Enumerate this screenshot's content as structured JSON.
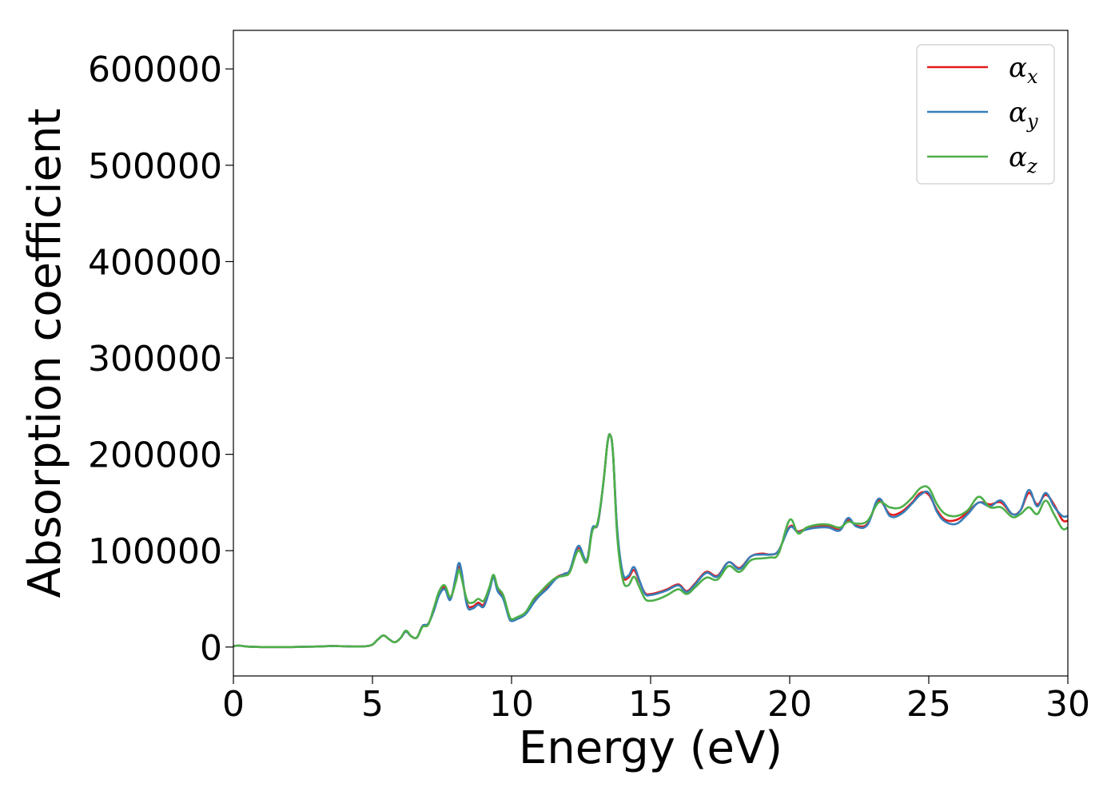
{
  "chart_data": {
    "type": "line",
    "xlabel": "Energy (eV)",
    "ylabel": "Absorption coefficient",
    "xlim": [
      0,
      30
    ],
    "ylim": [
      -30000,
      640000
    ],
    "xticks": [
      0,
      5,
      10,
      15,
      20,
      25,
      30
    ],
    "yticks": [
      0,
      100000,
      200000,
      300000,
      400000,
      500000,
      600000
    ],
    "grid": false,
    "legend_position": "top-right",
    "series": [
      {
        "name": "α",
        "subscript": "x",
        "color": "#e41a1c",
        "x": [
          0,
          0.2,
          0.5,
          1,
          2,
          3,
          3.5,
          4,
          4.5,
          4.8,
          5,
          5.2,
          5.4,
          5.6,
          5.8,
          6,
          6.2,
          6.4,
          6.6,
          6.8,
          7,
          7.2,
          7.4,
          7.6,
          7.8,
          8,
          8.1,
          8.2,
          8.4,
          8.6,
          8.8,
          9,
          9.2,
          9.35,
          9.5,
          9.7,
          9.9,
          10,
          10.2,
          10.5,
          10.8,
          11,
          11.3,
          11.6,
          11.9,
          12.1,
          12.4,
          12.7,
          12.9,
          13.1,
          13.3,
          13.45,
          13.55,
          13.65,
          13.8,
          14,
          14.2,
          14.4,
          14.6,
          14.8,
          15,
          15.3,
          15.6,
          16,
          16.3,
          16.6,
          17,
          17.4,
          17.8,
          18.2,
          18.6,
          19,
          19.3,
          19.6,
          20,
          20.3,
          20.6,
          21,
          21.4,
          21.8,
          22.1,
          22.4,
          22.8,
          23.2,
          23.6,
          24,
          24.4,
          24.7,
          25,
          25.3,
          25.6,
          26,
          26.4,
          26.8,
          27.2,
          27.6,
          28,
          28.3,
          28.6,
          28.9,
          29.2,
          29.5,
          29.8,
          30
        ],
        "y": [
          1000,
          1500,
          500,
          0,
          0,
          500,
          1000,
          800,
          500,
          1000,
          2500,
          8000,
          12000,
          8000,
          5000,
          9000,
          16000,
          11000,
          10000,
          22000,
          24000,
          38000,
          55000,
          62000,
          50000,
          72000,
          84000,
          76000,
          45000,
          42000,
          46000,
          44000,
          60000,
          73000,
          60000,
          52000,
          32000,
          28000,
          30000,
          35000,
          48000,
          55000,
          63000,
          72000,
          76000,
          80000,
          103000,
          90000,
          122000,
          128000,
          170000,
          212000,
          220000,
          200000,
          120000,
          75000,
          72000,
          80000,
          68000,
          56000,
          55000,
          57000,
          60000,
          65000,
          58000,
          66000,
          78000,
          74000,
          88000,
          82000,
          94000,
          97000,
          96000,
          100000,
          125000,
          120000,
          123000,
          125000,
          125000,
          122000,
          132000,
          126000,
          128000,
          152000,
          138000,
          140000,
          150000,
          160000,
          158000,
          142000,
          132000,
          132000,
          140000,
          150000,
          148000,
          150000,
          138000,
          142000,
          160000,
          148000,
          158000,
          148000,
          132000,
          131000
        ]
      },
      {
        "name": "α",
        "subscript": "y",
        "color": "#377eb8",
        "x": [
          0,
          0.2,
          0.5,
          1,
          2,
          3,
          3.5,
          4,
          4.5,
          4.8,
          5,
          5.2,
          5.4,
          5.6,
          5.8,
          6,
          6.2,
          6.4,
          6.6,
          6.8,
          7,
          7.2,
          7.4,
          7.6,
          7.8,
          8,
          8.1,
          8.2,
          8.4,
          8.6,
          8.8,
          9,
          9.2,
          9.35,
          9.5,
          9.7,
          9.9,
          10,
          10.2,
          10.5,
          10.8,
          11,
          11.3,
          11.6,
          11.9,
          12.1,
          12.4,
          12.7,
          12.9,
          13.1,
          13.3,
          13.45,
          13.55,
          13.65,
          13.8,
          14,
          14.2,
          14.4,
          14.6,
          14.8,
          15,
          15.3,
          15.6,
          16,
          16.3,
          16.6,
          17,
          17.4,
          17.8,
          18.2,
          18.6,
          19,
          19.3,
          19.6,
          20,
          20.3,
          20.6,
          21,
          21.4,
          21.8,
          22.1,
          22.4,
          22.8,
          23.2,
          23.6,
          24,
          24.4,
          24.7,
          25,
          25.3,
          25.6,
          26,
          26.4,
          26.8,
          27.2,
          27.6,
          28,
          28.3,
          28.6,
          28.9,
          29.2,
          29.5,
          29.8,
          30
        ],
        "y": [
          1000,
          1500,
          500,
          0,
          0,
          500,
          1000,
          800,
          500,
          1000,
          2500,
          8000,
          12000,
          8000,
          5000,
          9000,
          16000,
          11000,
          10000,
          22000,
          24000,
          37000,
          54000,
          60000,
          49000,
          74000,
          87000,
          79000,
          43000,
          40000,
          44000,
          42000,
          58000,
          72000,
          58000,
          50000,
          31000,
          27000,
          29000,
          34000,
          46000,
          53000,
          61000,
          71000,
          76000,
          80000,
          105000,
          90000,
          123000,
          128000,
          170000,
          212000,
          220000,
          200000,
          122000,
          77000,
          74000,
          83000,
          69000,
          55000,
          54000,
          56000,
          59000,
          64000,
          57000,
          65000,
          77000,
          73000,
          88000,
          81000,
          94000,
          96000,
          96000,
          100000,
          124000,
          119000,
          122000,
          124000,
          124000,
          121000,
          134000,
          125000,
          127000,
          154000,
          136000,
          138000,
          149000,
          158000,
          160000,
          140000,
          130000,
          128000,
          138000,
          150000,
          146000,
          152000,
          138000,
          142000,
          163000,
          146000,
          160000,
          146000,
          136000,
          136000
        ]
      },
      {
        "name": "α",
        "subscript": "z",
        "color": "#4daf4a",
        "x": [
          0,
          0.2,
          0.5,
          1,
          2,
          3,
          3.5,
          4,
          4.5,
          4.8,
          5,
          5.2,
          5.4,
          5.6,
          5.8,
          6,
          6.2,
          6.4,
          6.6,
          6.8,
          7,
          7.2,
          7.4,
          7.6,
          7.8,
          8,
          8.1,
          8.2,
          8.4,
          8.6,
          8.8,
          9,
          9.2,
          9.35,
          9.5,
          9.7,
          9.9,
          10,
          10.2,
          10.5,
          10.8,
          11,
          11.3,
          11.6,
          11.9,
          12.1,
          12.4,
          12.7,
          12.9,
          13.1,
          13.3,
          13.45,
          13.55,
          13.65,
          13.8,
          14,
          14.2,
          14.4,
          14.6,
          14.8,
          15,
          15.3,
          15.6,
          16,
          16.3,
          16.6,
          17,
          17.4,
          17.8,
          18.2,
          18.6,
          19,
          19.3,
          19.6,
          20,
          20.3,
          20.6,
          21,
          21.4,
          21.8,
          22.1,
          22.4,
          22.8,
          23.2,
          23.6,
          24,
          24.4,
          24.7,
          25,
          25.3,
          25.6,
          26,
          26.4,
          26.8,
          27.2,
          27.6,
          28,
          28.3,
          28.6,
          28.9,
          29.2,
          29.5,
          29.8,
          30
        ],
        "y": [
          1000,
          1500,
          500,
          0,
          0,
          500,
          1000,
          800,
          500,
          1000,
          2500,
          8000,
          12000,
          8000,
          5000,
          9000,
          17000,
          11000,
          10000,
          21000,
          23000,
          40000,
          58000,
          64000,
          52000,
          68000,
          80000,
          72000,
          49000,
          46000,
          50000,
          48000,
          62000,
          75000,
          62000,
          54000,
          34000,
          29000,
          31000,
          36000,
          50000,
          56000,
          65000,
          72000,
          74000,
          78000,
          100000,
          88000,
          120000,
          130000,
          170000,
          212000,
          220000,
          200000,
          115000,
          70000,
          64000,
          73000,
          62000,
          50000,
          48000,
          50000,
          54000,
          60000,
          55000,
          62000,
          72000,
          70000,
          84000,
          78000,
          90000,
          92000,
          93000,
          97000,
          132000,
          118000,
          124000,
          127000,
          127000,
          124000,
          130000,
          128000,
          131000,
          150000,
          145000,
          145000,
          155000,
          165000,
          165000,
          148000,
          138000,
          136000,
          142000,
          156000,
          145000,
          145000,
          135000,
          138000,
          145000,
          138000,
          152000,
          138000,
          123000,
          124000
        ]
      }
    ]
  }
}
